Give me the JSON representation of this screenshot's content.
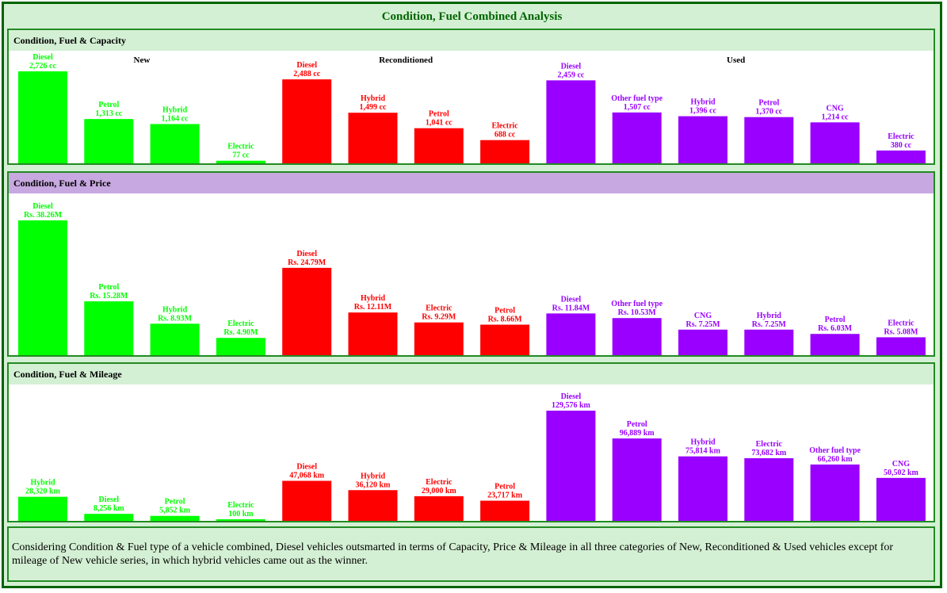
{
  "title": "Condition, Fuel Combined Analysis",
  "colors": {
    "New": "#00ff00",
    "Reconditioned": "#ff0000",
    "Used": "#9900ff",
    "frame": "#006400",
    "header_green": "#d4f0d4",
    "header_purple": "#c8a8e0"
  },
  "summary": "Considering Condition & Fuel type of a vehicle combined, Diesel vehicles outsmarted in terms of Capacity, Price & Mileage in all three categories of New, Reconditioned & Used vehicles except for mileage of New vehicle series, in which hybrid vehicles came out as the winner.",
  "chart_data": [
    {
      "type": "bar",
      "title": "Condition, Fuel & Capacity",
      "group_labels": [
        "New",
        "Reconditioned",
        "Used"
      ],
      "ymax": 2726,
      "series": [
        {
          "name": "New",
          "categories": [
            "Diesel",
            "Petrol",
            "Hybrid",
            "Electric"
          ],
          "values": [
            2726,
            1313,
            1164,
            77
          ],
          "labels": [
            "2,726 cc",
            "1,313 cc",
            "1,164 cc",
            "77 cc"
          ]
        },
        {
          "name": "Reconditioned",
          "categories": [
            "Diesel",
            "Hybrid",
            "Petrol",
            "Electric"
          ],
          "values": [
            2488,
            1499,
            1041,
            688
          ],
          "labels": [
            "2,488 cc",
            "1,499 cc",
            "1,041 cc",
            "688 cc"
          ]
        },
        {
          "name": "Used",
          "categories": [
            "Diesel",
            "Other fuel type",
            "Hybrid",
            "Petrol",
            "CNG",
            "Electric"
          ],
          "values": [
            2459,
            1507,
            1396,
            1370,
            1214,
            380
          ],
          "labels": [
            "2,459 cc",
            "1,507 cc",
            "1,396 cc",
            "1,370 cc",
            "1,214 cc",
            "380 cc"
          ]
        }
      ]
    },
    {
      "type": "bar",
      "title": "Condition, Fuel & Price",
      "ymax": 38.26,
      "series": [
        {
          "name": "New",
          "categories": [
            "Diesel",
            "Petrol",
            "Hybrid",
            "Electric"
          ],
          "values": [
            38.26,
            15.28,
            8.93,
            4.9
          ],
          "labels": [
            "Rs. 38.26M",
            "Rs. 15.28M",
            "Rs. 8.93M",
            "Rs. 4.90M"
          ]
        },
        {
          "name": "Reconditioned",
          "categories": [
            "Diesel",
            "Hybrid",
            "Electric",
            "Petrol"
          ],
          "values": [
            24.79,
            12.11,
            9.29,
            8.66
          ],
          "labels": [
            "Rs. 24.79M",
            "Rs. 12.11M",
            "Rs. 9.29M",
            "Rs. 8.66M"
          ]
        },
        {
          "name": "Used",
          "categories": [
            "Diesel",
            "Other fuel type",
            "CNG",
            "Hybrid",
            "Petrol",
            "Electric"
          ],
          "values": [
            11.84,
            10.53,
            7.25,
            7.25,
            6.03,
            5.08
          ],
          "labels": [
            "Rs. 11.84M",
            "Rs. 10.53M",
            "Rs. 7.25M",
            "Rs. 7.25M",
            "Rs. 6.03M",
            "Rs. 5.08M"
          ]
        }
      ]
    },
    {
      "type": "bar",
      "title": "Condition, Fuel & Mileage",
      "ymax": 129576,
      "series": [
        {
          "name": "New",
          "categories": [
            "Hybrid",
            "Diesel",
            "Petrol",
            "Electric"
          ],
          "values": [
            28320,
            8256,
            5852,
            100
          ],
          "labels": [
            "28,320 km",
            "8,256 km",
            "5,852 km",
            "100 km"
          ]
        },
        {
          "name": "Reconditioned",
          "categories": [
            "Diesel",
            "Hybrid",
            "Electric",
            "Petrol"
          ],
          "values": [
            47068,
            36120,
            29000,
            23717
          ],
          "labels": [
            "47,068 km",
            "36,120 km",
            "29,000 km",
            "23,717 km"
          ]
        },
        {
          "name": "Used",
          "categories": [
            "Diesel",
            "Petrol",
            "Hybrid",
            "Electric",
            "Other fuel type",
            "CNG"
          ],
          "values": [
            129576,
            96889,
            75814,
            73682,
            66260,
            50502
          ],
          "labels": [
            "129,576 km",
            "96,889 km",
            "75,814 km",
            "73,682 km",
            "66,260 km",
            "50,502 km"
          ]
        }
      ]
    }
  ]
}
